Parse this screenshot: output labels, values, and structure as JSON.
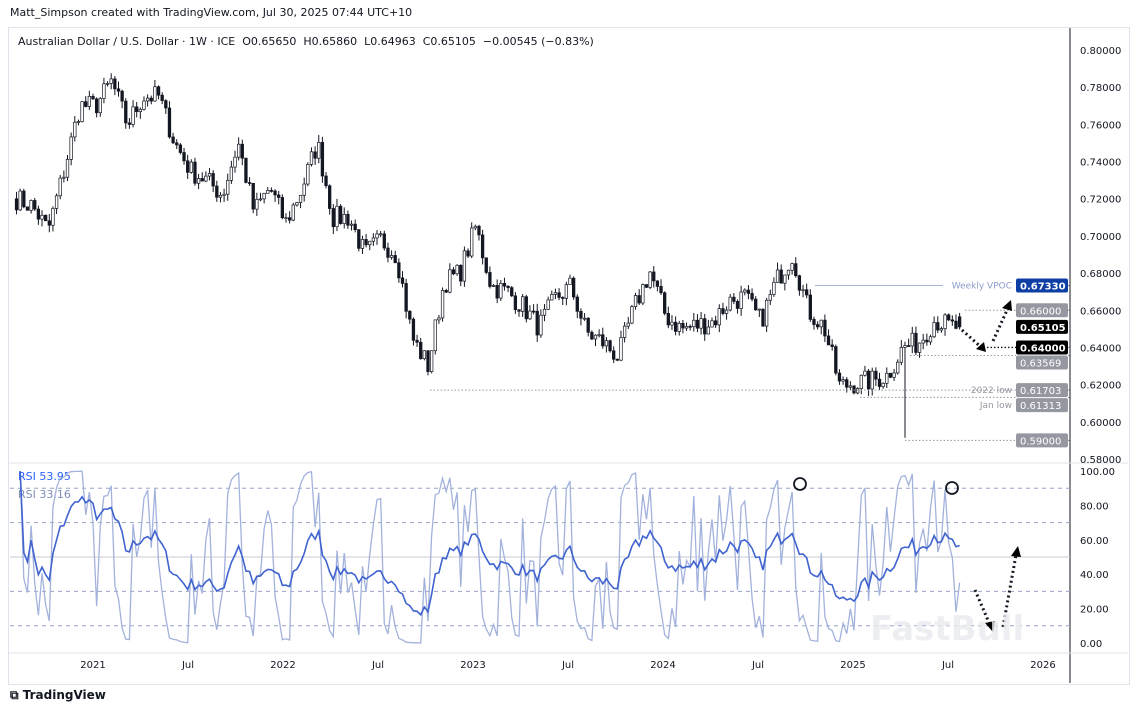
{
  "header": {
    "credit": "Matt_Simpson created with TradingView.com, Jul 30, 2025 07:44 UTC+10",
    "legend": "Australian Dollar / U.S. Dollar · 1W · ICE  O0.65650  H0.65860  L0.64963  C0.65105  −0.00545 (−0.83%)"
  },
  "footer": {
    "logo": "TradingView",
    "watermark": "FastBull"
  },
  "chart_data": [
    {
      "type": "candlestick",
      "title": "Australian Dollar / U.S. Dollar · 1W · ICE",
      "ohlc_last": {
        "open": 0.6565,
        "high": 0.6586,
        "low": 0.64963,
        "close": 0.65105,
        "change": -0.00545,
        "change_pct": -0.83
      },
      "monthly_close": {
        "months": [
          "2020-08",
          "2020-09",
          "2020-10",
          "2020-11",
          "2020-12",
          "2021-01",
          "2021-02",
          "2021-03",
          "2021-04",
          "2021-05",
          "2021-06",
          "2021-07",
          "2021-08",
          "2021-09",
          "2021-10",
          "2021-11",
          "2021-12",
          "2022-01",
          "2022-02",
          "2022-03",
          "2022-04",
          "2022-05",
          "2022-06",
          "2022-07",
          "2022-08",
          "2022-09",
          "2022-10",
          "2022-11",
          "2022-12",
          "2023-01",
          "2023-02",
          "2023-03",
          "2023-04",
          "2023-05",
          "2023-06",
          "2023-07",
          "2023-08",
          "2023-09",
          "2023-10",
          "2023-11",
          "2023-12",
          "2024-01",
          "2024-02",
          "2024-03",
          "2024-04",
          "2024-05",
          "2024-06",
          "2024-07",
          "2024-08",
          "2024-09",
          "2024-10",
          "2024-11",
          "2024-12",
          "2025-01",
          "2025-02",
          "2025-03",
          "2025-04",
          "2025-05",
          "2025-06",
          "2025-07"
        ],
        "values": [
          0.72,
          0.716,
          0.703,
          0.735,
          0.77,
          0.77,
          0.783,
          0.76,
          0.775,
          0.775,
          0.75,
          0.735,
          0.73,
          0.722,
          0.75,
          0.713,
          0.726,
          0.707,
          0.725,
          0.75,
          0.71,
          0.71,
          0.69,
          0.698,
          0.69,
          0.645,
          0.63,
          0.675,
          0.68,
          0.705,
          0.673,
          0.67,
          0.662,
          0.651,
          0.666,
          0.673,
          0.648,
          0.643,
          0.635,
          0.661,
          0.681,
          0.657,
          0.65,
          0.652,
          0.654,
          0.665,
          0.667,
          0.654,
          0.676,
          0.69,
          0.66,
          0.651,
          0.619,
          0.621,
          0.622,
          0.625,
          0.64,
          0.643,
          0.655,
          0.651
        ]
      },
      "yaxis": {
        "ticks": [
          "0.80000",
          "0.78000",
          "0.76000",
          "0.74000",
          "0.72000",
          "0.70000",
          "0.68000",
          "0.66000",
          "0.64000",
          "0.62000",
          "0.60000",
          "0.58000"
        ],
        "ylim": [
          0.58,
          0.8
        ]
      },
      "price_labels": [
        {
          "value": 0.6733,
          "label": "0.67330",
          "note": "Weekly VPOC",
          "color": "#0d3ea3"
        },
        {
          "value": 0.66,
          "label": "0.66000",
          "color": "#9598a1"
        },
        {
          "value": 0.65105,
          "label": "0.65105",
          "color": "#000000"
        },
        {
          "value": 0.64,
          "label": "0.64000",
          "color": "#000000"
        },
        {
          "value": 0.63569,
          "label": "0.63569",
          "color": "#9598a1"
        },
        {
          "value": 0.61703,
          "label": "0.61703",
          "note": "2022 low",
          "color": "#9598a1"
        },
        {
          "value": 0.61313,
          "label": "0.61313",
          "note": "Jan low",
          "color": "#9598a1"
        },
        {
          "value": 0.59,
          "label": "0.59000",
          "color": "#9598a1"
        }
      ]
    },
    {
      "type": "line",
      "title": "RSI",
      "legend": [
        {
          "name": "RSI",
          "value": "53.95",
          "color": "#2962ff"
        },
        {
          "name": "RSI",
          "value": "33.16",
          "color": "#9fb0e0"
        }
      ],
      "yaxis": {
        "ticks": [
          "100.00",
          "80.00",
          "60.00",
          "40.00",
          "20.00",
          "0.00"
        ],
        "ylim": [
          0,
          100
        ]
      },
      "levels": [
        90,
        70,
        50,
        30,
        10
      ]
    }
  ],
  "xaxis": {
    "ticks": [
      "2021",
      "Jul",
      "2022",
      "Jul",
      "2023",
      "Jul",
      "2024",
      "Jul",
      "2025",
      "Jul",
      "2026"
    ]
  }
}
